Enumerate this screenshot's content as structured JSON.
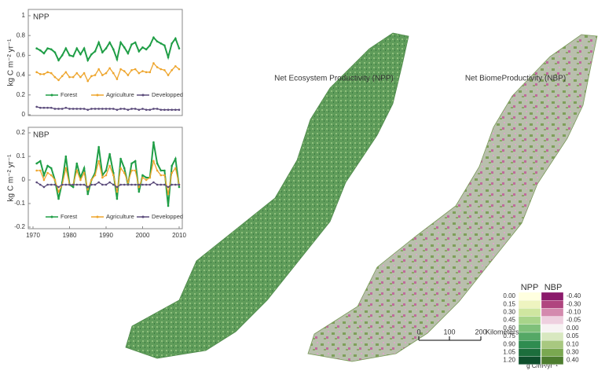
{
  "chart_data": [
    {
      "type": "line",
      "title": "NPP",
      "y_label": "kg C m⁻² yr⁻¹",
      "x": [
        1971,
        1972,
        1973,
        1974,
        1975,
        1976,
        1977,
        1978,
        1979,
        1980,
        1981,
        1982,
        1983,
        1984,
        1985,
        1986,
        1987,
        1988,
        1989,
        1990,
        1991,
        1992,
        1993,
        1994,
        1995,
        1996,
        1997,
        1998,
        1999,
        2000,
        2001,
        2002,
        2003,
        2004,
        2005,
        2006,
        2007,
        2008,
        2009,
        2010
      ],
      "xlim": [
        1970,
        2010
      ],
      "ylim": [
        0,
        1
      ],
      "yticks": [
        0,
        0.2,
        0.4,
        0.6,
        0.8,
        1
      ],
      "series": [
        {
          "name": "Forest",
          "color": "#1f9e46",
          "values": [
            0.67,
            0.65,
            0.62,
            0.67,
            0.66,
            0.63,
            0.55,
            0.6,
            0.67,
            0.6,
            0.59,
            0.67,
            0.61,
            0.67,
            0.55,
            0.61,
            0.64,
            0.73,
            0.63,
            0.67,
            0.73,
            0.66,
            0.56,
            0.73,
            0.68,
            0.62,
            0.71,
            0.73,
            0.64,
            0.68,
            0.66,
            0.7,
            0.78,
            0.74,
            0.72,
            0.7,
            0.58,
            0.72,
            0.77,
            0.67
          ]
        },
        {
          "name": "Agriculture",
          "color": "#eea52c",
          "values": [
            0.43,
            0.41,
            0.41,
            0.43,
            0.42,
            0.38,
            0.35,
            0.39,
            0.43,
            0.38,
            0.38,
            0.42,
            0.38,
            0.42,
            0.34,
            0.39,
            0.4,
            0.46,
            0.4,
            0.42,
            0.47,
            0.42,
            0.36,
            0.46,
            0.44,
            0.4,
            0.45,
            0.46,
            0.42,
            0.44,
            0.43,
            0.43,
            0.52,
            0.48,
            0.46,
            0.45,
            0.4,
            0.45,
            0.49,
            0.46
          ]
        },
        {
          "name": "Developped",
          "color": "#5a4a7a",
          "values": [
            0.08,
            0.07,
            0.07,
            0.07,
            0.07,
            0.06,
            0.06,
            0.06,
            0.07,
            0.06,
            0.06,
            0.06,
            0.06,
            0.06,
            0.05,
            0.06,
            0.06,
            0.06,
            0.06,
            0.06,
            0.06,
            0.06,
            0.05,
            0.06,
            0.06,
            0.05,
            0.06,
            0.06,
            0.05,
            0.06,
            0.05,
            0.05,
            0.06,
            0.06,
            0.05,
            0.05,
            0.05,
            0.05,
            0.05,
            0.05
          ]
        }
      ]
    },
    {
      "type": "line",
      "title": "NBP",
      "y_label": "kg C m⁻² yr⁻¹",
      "x": [
        1971,
        1972,
        1973,
        1974,
        1975,
        1976,
        1977,
        1978,
        1979,
        1980,
        1981,
        1982,
        1983,
        1984,
        1985,
        1986,
        1987,
        1988,
        1989,
        1990,
        1991,
        1992,
        1993,
        1994,
        1995,
        1996,
        1997,
        1998,
        1999,
        2000,
        2001,
        2002,
        2003,
        2004,
        2005,
        2006,
        2007,
        2008,
        2009,
        2010
      ],
      "xlim": [
        1970,
        2010
      ],
      "xticks": [
        1970,
        1980,
        1990,
        2000,
        2010
      ],
      "ylim": [
        -0.2,
        0.2
      ],
      "yticks": [
        -0.2,
        -0.1,
        0,
        0.1,
        0.2
      ],
      "series": [
        {
          "name": "Forest",
          "color": "#1f9e46",
          "values": [
            0.07,
            0.08,
            0.02,
            0.06,
            0.05,
            0,
            -0.08,
            -0.01,
            0.1,
            -0.02,
            -0.03,
            0.07,
            0.01,
            0.05,
            -0.06,
            0,
            0.03,
            0.14,
            0.02,
            0.04,
            0.11,
            0.03,
            -0.08,
            0.09,
            0.05,
            -0.02,
            0.07,
            0.08,
            -0.05,
            0.02,
            0.01,
            0.01,
            0.16,
            0.07,
            0.04,
            0.04,
            -0.11,
            0.06,
            0.09,
            -0.03
          ]
        },
        {
          "name": "Agriculture",
          "color": "#eea52c",
          "values": [
            0.04,
            0.04,
            0,
            0.03,
            0.02,
            0,
            -0.05,
            -0.02,
            0.05,
            -0.02,
            -0.02,
            0.04,
            0,
            0.03,
            -0.04,
            0,
            0.02,
            0.08,
            0.01,
            0.02,
            0.06,
            0.02,
            -0.05,
            0.05,
            0.03,
            -0.01,
            0.04,
            0.04,
            -0.03,
            0.01,
            0,
            0.01,
            0.08,
            0.04,
            0.02,
            0.02,
            -0.06,
            0.03,
            0.05,
            -0.02
          ]
        },
        {
          "name": "Developped",
          "color": "#5a4a7a",
          "values": [
            -0.01,
            -0.02,
            -0.03,
            -0.02,
            -0.02,
            -0.02,
            -0.03,
            -0.02,
            -0.02,
            -0.02,
            -0.02,
            -0.02,
            -0.02,
            -0.02,
            -0.03,
            -0.02,
            -0.02,
            -0.01,
            -0.02,
            -0.02,
            -0.01,
            -0.02,
            -0.03,
            -0.02,
            -0.02,
            -0.02,
            -0.02,
            -0.02,
            -0.02,
            -0.02,
            -0.02,
            -0.02,
            -0.01,
            -0.02,
            -0.02,
            -0.02,
            -0.03,
            -0.02,
            -0.02,
            -0.02
          ]
        }
      ]
    }
  ],
  "maps": {
    "npp_title": "Net Ecosystem Productivity (NPP)",
    "nbp_title": "Net BiomeProductivity (NBP)",
    "legend": {
      "npp_header": "NPP",
      "nbp_header": "NBP",
      "npp_labels": [
        "0.00",
        "0.15",
        "0.30",
        "0.45",
        "0.60",
        "0.75",
        "0.90",
        "1.05",
        "1.20"
      ],
      "nbp_labels": [
        "-0.40",
        "-0.30",
        "-0.10",
        "-0.05",
        "0.00",
        "0.05",
        "0.10",
        "0.30",
        "0.40"
      ],
      "npp_colors": [
        "#ffffe0",
        "#eef4c0",
        "#cfe6a0",
        "#a8d48a",
        "#7fc07a",
        "#55a866",
        "#2f8c50",
        "#1c6e3c",
        "#0e4f2c"
      ],
      "nbp_colors": [
        "#8b1a6b",
        "#b0457f",
        "#d48aae",
        "#eed0df",
        "#f7f3f3",
        "#d8e8c0",
        "#a8c880",
        "#7aa850",
        "#4d7d2f"
      ],
      "unit": "g C/m²/yr⁻¹"
    },
    "scale_bar": {
      "labels": [
        "0",
        "100",
        "200"
      ],
      "unit": "Kilometers"
    }
  }
}
